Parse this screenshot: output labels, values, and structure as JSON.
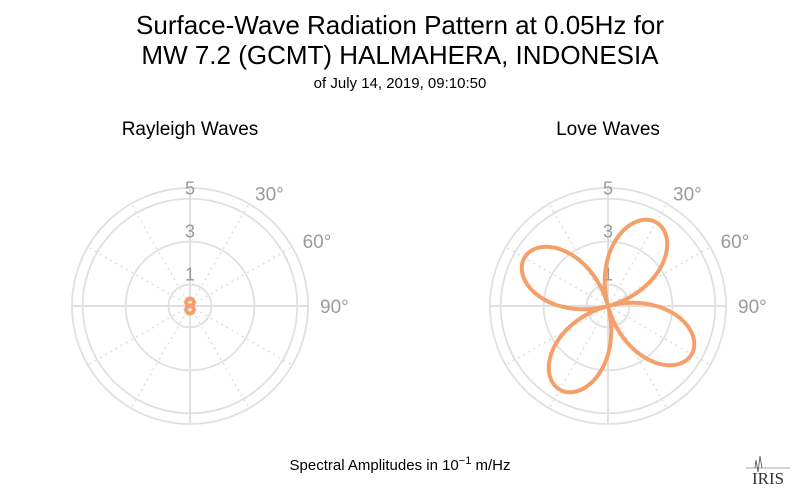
{
  "title_line1": "Surface-Wave Radiation Pattern at 0.05Hz for",
  "title_line2": "MW 7.2 (GCMT) HALMAHERA, INDONESIA",
  "title_line3": "of July 14, 2019, 09:10:50",
  "footer": {
    "prefix": "Spectral Amplitudes in ",
    "base": "10",
    "exponent": "−1",
    "suffix": " m/Hz"
  },
  "logo_text": "IRIS",
  "colors": {
    "pattern": "#F5A06A",
    "grid": "#E0E0E0",
    "label": "#9A9A9A"
  },
  "chart_data": [
    {
      "type": "polar-line",
      "title": "Rayleigh Waves",
      "r_ticks": [
        "1",
        "3",
        "5"
      ],
      "angle_ticks": [
        "30°",
        "60°",
        "90°"
      ],
      "r_max": 5.5,
      "pattern": {
        "form": "two-lobe",
        "peak_amplitude": 0.35,
        "lobe_axis_deg": 0
      }
    },
    {
      "type": "polar-line",
      "title": "Love Waves",
      "r_ticks": [
        "1",
        "3",
        "5"
      ],
      "angle_ticks": [
        "30°",
        "60°",
        "90°"
      ],
      "r_max": 5.5,
      "pattern": {
        "form": "four-lobe",
        "peak_amplitude": 4.5,
        "lobe_axes_deg": [
          30,
          120,
          210,
          300
        ]
      }
    }
  ]
}
